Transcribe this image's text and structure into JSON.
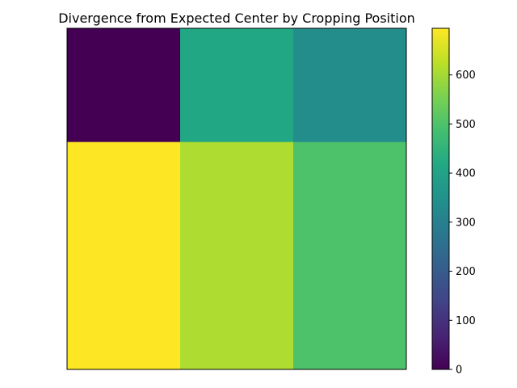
{
  "chart_data": {
    "type": "heatmap",
    "title": "Divergence from Expected Center by Cropping Position",
    "xlabel": "",
    "ylabel": "",
    "rows": [
      [
        0,
        415,
        335
      ],
      [
        695,
        610,
        500
      ],
      [
        695,
        610,
        500
      ]
    ],
    "colorbar": {
      "min": 0,
      "max": 695,
      "ticks": [
        0,
        100,
        200,
        300,
        400,
        500,
        600
      ],
      "colormap": "viridis"
    },
    "show_axes_ticks": false,
    "grid": false
  }
}
